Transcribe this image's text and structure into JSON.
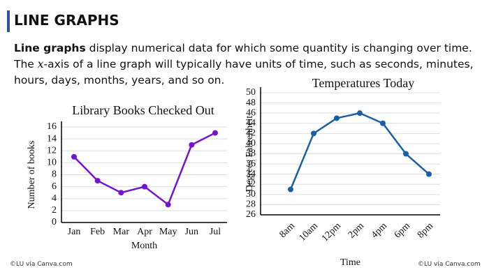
{
  "header": {
    "title": "LINE GRAPHS"
  },
  "paragraph": [
    "Line graphs",
    " display numerical data for which some quantity is changing over time. The ",
    "x",
    "-axis of a line graph will typically have units of time, such as seconds, minutes, hours, days, months, years, and so on."
  ],
  "credits": [
    "©LU via Canva.com",
    "©LU via Canva.com"
  ],
  "chart_data": [
    {
      "type": "line",
      "title": "Library Books Checked Out",
      "x_label": "Month",
      "y_label": "Number of books",
      "categories": [
        "Jan",
        "Feb",
        "Mar",
        "Apr",
        "May",
        "Jun",
        "Jul"
      ],
      "values": [
        11,
        7,
        5,
        6,
        3,
        13,
        15
      ],
      "color": "#7612d4",
      "ylim": [
        0,
        16
      ],
      "yticks": [
        0,
        2,
        4,
        6,
        8,
        10,
        12,
        14,
        16
      ],
      "grid": true
    },
    {
      "type": "line",
      "title": "Temperatures Today",
      "x_label": "Time",
      "y_label": "Degrees Fahrenheit",
      "categories": [
        "8am",
        "10am",
        "12pm",
        "2pm",
        "4pm",
        "6pm",
        "8pm"
      ],
      "values": [
        31,
        42,
        45,
        46,
        44,
        38,
        34
      ],
      "color": "#1a5fa6",
      "ylim": [
        26,
        50
      ],
      "yticks": [
        26,
        28,
        30,
        32,
        34,
        36,
        38,
        40,
        42,
        44,
        46,
        48,
        50
      ],
      "grid": true
    }
  ]
}
